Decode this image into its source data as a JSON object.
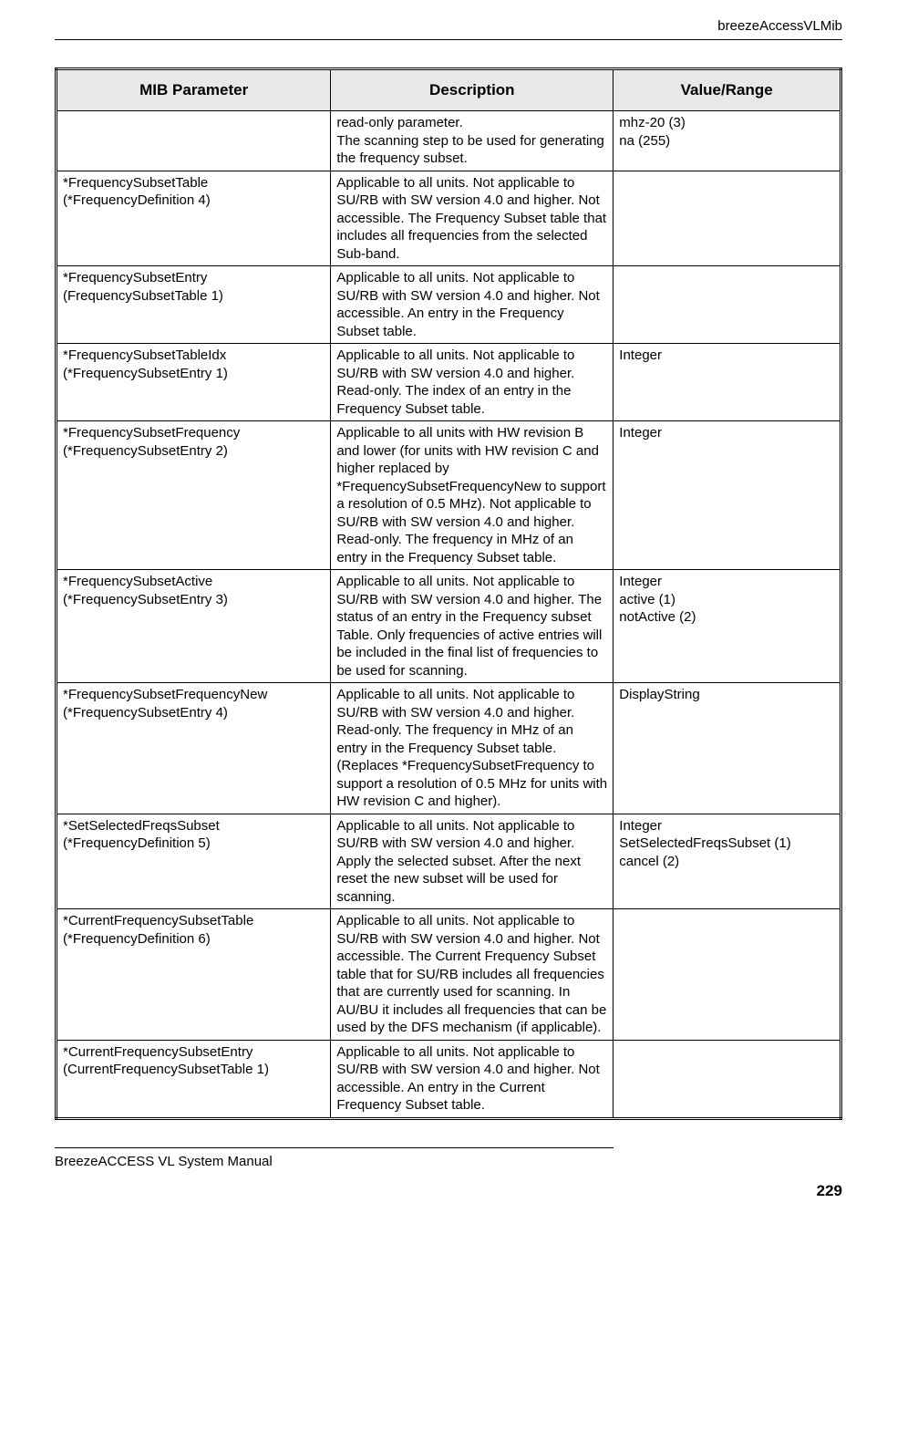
{
  "header": {
    "section_title": "breezeAccessVLMib"
  },
  "table": {
    "columns": [
      "MIB Parameter",
      "Description",
      "Value/Range"
    ],
    "col_widths": [
      "35%",
      "36%",
      "29%"
    ],
    "header_bg": "#e8e8e8",
    "border_color": "#000000",
    "font_size_header": 17,
    "font_size_cell": 15,
    "rows": [
      {
        "param": "",
        "desc": "read-only parameter.\nThe scanning step to be used for generating the frequency subset.",
        "value": "mhz-20 (3)\nna (255)"
      },
      {
        "param": "*FrequencySubsetTable\n(*FrequencyDefinition 4)",
        "desc": "Applicable to all units. Not applicable to SU/RB with SW version 4.0 and higher. Not accessible. The Frequency Subset table that includes all frequencies from the selected Sub-band.",
        "value": ""
      },
      {
        "param": "*FrequencySubsetEntry\n(FrequencySubsetTable 1)",
        "desc": "Applicable to all units. Not applicable to SU/RB with SW version 4.0 and higher. Not accessible. An entry in the Frequency Subset table.",
        "value": ""
      },
      {
        "param": "*FrequencySubsetTableIdx\n(*FrequencySubsetEntry 1)",
        "desc": "Applicable to all units. Not applicable to SU/RB with SW version 4.0 and higher. Read-only. The index of an entry in the Frequency Subset table.",
        "value": "Integer"
      },
      {
        "param": "*FrequencySubsetFrequency\n(*FrequencySubsetEntry 2)",
        "desc": "Applicable to all units with HW revision B and lower (for units with HW revision C and higher replaced by *FrequencySubsetFrequencyNew to support a resolution of 0.5 MHz). Not applicable to SU/RB with SW version 4.0 and higher. Read-only. The frequency in MHz of an entry in the Frequency Subset table.",
        "value": "Integer"
      },
      {
        "param": "*FrequencySubsetActive\n(*FrequencySubsetEntry 3)",
        "desc": "Applicable to all units. Not applicable to SU/RB with SW version 4.0 and higher. The status of an entry in the Frequency subset Table. Only frequencies of active entries will be included in the final list of frequencies to be used for scanning.",
        "value": "Integer\nactive (1)\nnotActive (2)"
      },
      {
        "param": "*FrequencySubsetFrequencyNew\n(*FrequencySubsetEntry 4)",
        "desc": "Applicable to all units. Not applicable to SU/RB with SW version 4.0 and higher. Read-only. The frequency in MHz of an entry in the Frequency Subset table. (Replaces *FrequencySubsetFrequency to support a resolution of 0.5 MHz for units with HW revision C and higher).",
        "value": "DisplayString"
      },
      {
        "param": "*SetSelectedFreqsSubset\n(*FrequencyDefinition 5)",
        "desc": "Applicable to all units. Not applicable to SU/RB with SW version 4.0 and higher. Apply the selected subset. After the next reset the new subset will be used for scanning.",
        "value": "Integer\nSetSelectedFreqsSubset (1)\ncancel (2)"
      },
      {
        "param": "*CurrentFrequencySubsetTable\n(*FrequencyDefinition 6)",
        "desc": "Applicable to all units. Not applicable to SU/RB with SW version 4.0 and higher. Not accessible. The Current Frequency Subset table that for SU/RB includes all frequencies that are currently used for scanning. In AU/BU it includes all frequencies that can be used by the DFS mechanism (if applicable).",
        "value": ""
      },
      {
        "param": "*CurrentFrequencySubsetEntry\n(CurrentFrequencySubsetTable 1)",
        "desc": "Applicable to all units. Not applicable to SU/RB with SW version 4.0 and higher.  Not accessible. An entry in the Current Frequency Subset table.",
        "value": ""
      }
    ]
  },
  "footer": {
    "manual_name": "BreezeACCESS VL System Manual",
    "page_number": "229"
  }
}
